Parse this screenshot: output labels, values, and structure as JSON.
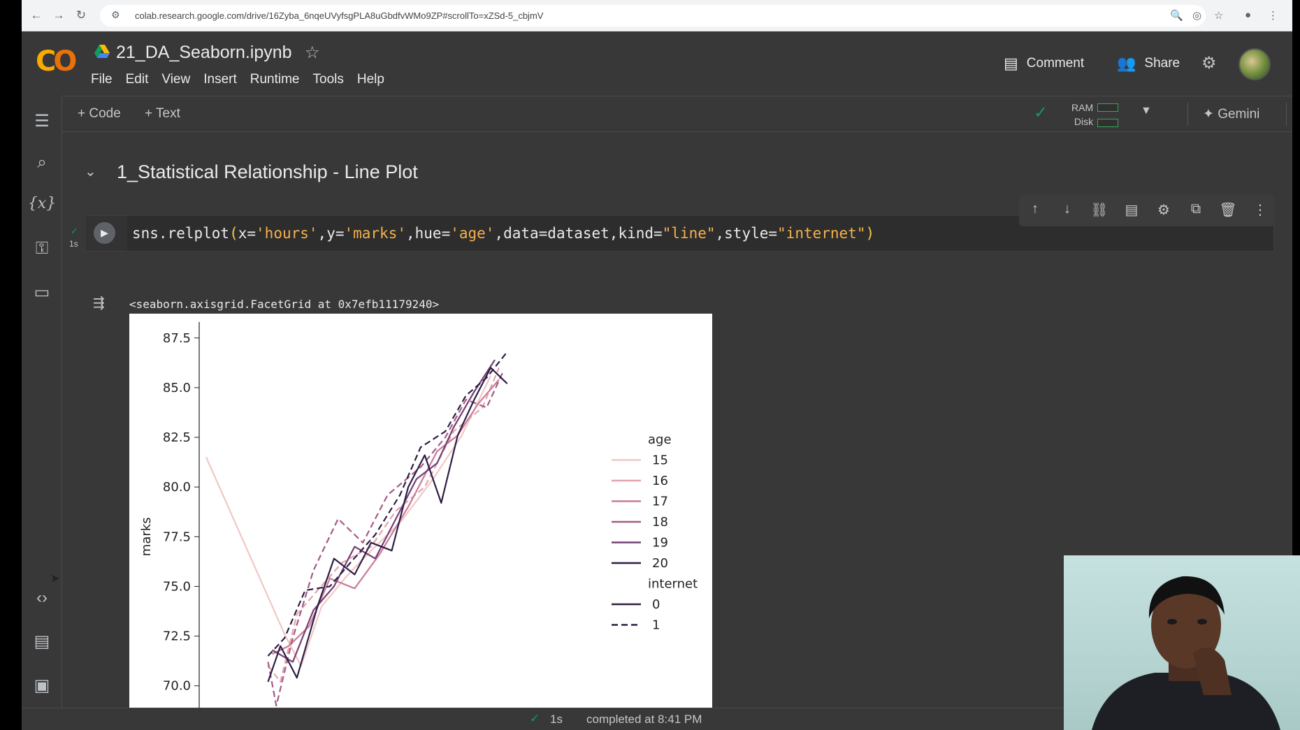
{
  "browser": {
    "url": "colab.research.google.com/drive/16Zyba_6nqeUVyfsgPLA8uGbdfvWMo9ZP#scrollTo=xZSd-5_cbjmV"
  },
  "header": {
    "title": "21_DA_Seaborn.ipynb",
    "menu": [
      "File",
      "Edit",
      "View",
      "Insert",
      "Runtime",
      "Tools",
      "Help"
    ],
    "comment_label": "Comment",
    "share_label": "Share"
  },
  "toolbar": {
    "add_code_label": "+ Code",
    "add_text_label": "+ Text",
    "ram_label": "RAM",
    "disk_label": "Disk",
    "gemini_label": "Gemini"
  },
  "notebook": {
    "section_title": "1_Statistical Relationship - Line Plot",
    "cell": {
      "exec_time": "1s",
      "code_prefix": "sns.relplot",
      "code_parts": [
        {
          "t": "(",
          "c": "paren"
        },
        {
          "t": "x=",
          "c": ""
        },
        {
          "t": "'hours'",
          "c": "str"
        },
        {
          "t": ",y=",
          "c": ""
        },
        {
          "t": "'marks'",
          "c": "str"
        },
        {
          "t": ",hue=",
          "c": ""
        },
        {
          "t": "'age'",
          "c": "str"
        },
        {
          "t": ",data=dataset,kind=",
          "c": ""
        },
        {
          "t": "\"line\"",
          "c": "str"
        },
        {
          "t": ",style=",
          "c": ""
        },
        {
          "t": "\"internet\"",
          "c": "str"
        },
        {
          "t": ")",
          "c": "paren"
        }
      ],
      "output_repr": "<seaborn.axisgrid.FacetGrid at 0x7efb11179240>"
    }
  },
  "status": {
    "time": "1s",
    "text": "completed at 8:41 PM"
  },
  "chart_data": {
    "type": "line",
    "title": "",
    "xlabel": "",
    "ylabel": "marks",
    "ylim": [
      68.9,
      88.3
    ],
    "y_ticks": [
      70.0,
      72.5,
      75.0,
      77.5,
      80.0,
      82.5,
      85.0,
      87.5
    ],
    "y_tick_labels": [
      "70.0",
      "72.5",
      "75.0",
      "77.5",
      "80.0",
      "82.5",
      "85.0",
      "87.5"
    ],
    "x_range": [
      0,
      1
    ],
    "legend": {
      "position": "right",
      "hue_title": "age",
      "style_title": "internet",
      "hue_entries": [
        {
          "label": "15",
          "color": "#f0c8c3"
        },
        {
          "label": "16",
          "color": "#e3a3ad"
        },
        {
          "label": "17",
          "color": "#cb7a98"
        },
        {
          "label": "18",
          "color": "#a55a86"
        },
        {
          "label": "19",
          "color": "#743f73"
        },
        {
          "label": "20",
          "color": "#2f1d45"
        }
      ],
      "style_entries": [
        {
          "label": "0",
          "dash": "solid"
        },
        {
          "label": "1",
          "dash": "dashed"
        }
      ]
    },
    "series": [
      {
        "hue": "15",
        "style": "0",
        "x": [
          0.0,
          0.19,
          0.23,
          0.28,
          0.34,
          0.4,
          0.47,
          0.55,
          0.62,
          0.69
        ],
        "y": [
          81.5,
          72.6,
          71.0,
          74.0,
          75.5,
          76.8,
          78.2,
          80.4,
          82.6,
          85.6
        ]
      },
      {
        "hue": "16",
        "style": "1",
        "x": [
          0.15,
          0.18,
          0.22,
          0.27,
          0.33,
          0.4,
          0.46,
          0.53,
          0.6,
          0.67,
          0.71
        ],
        "y": [
          71.0,
          70.2,
          73.6,
          74.8,
          76.2,
          77.0,
          78.8,
          80.0,
          82.8,
          84.0,
          86.0
        ]
      },
      {
        "hue": "17",
        "style": "0",
        "x": [
          0.16,
          0.2,
          0.25,
          0.3,
          0.36,
          0.42,
          0.49,
          0.56,
          0.61,
          0.66,
          0.71
        ],
        "y": [
          71.6,
          72.0,
          73.0,
          75.4,
          74.9,
          76.6,
          79.0,
          81.8,
          82.6,
          84.2,
          85.4
        ]
      },
      {
        "hue": "18",
        "style": "1",
        "x": [
          0.15,
          0.17,
          0.21,
          0.26,
          0.32,
          0.38,
          0.44,
          0.52,
          0.58,
          0.63,
          0.68,
          0.72
        ],
        "y": [
          71.2,
          69.0,
          72.4,
          75.8,
          78.4,
          77.2,
          79.6,
          81.0,
          82.5,
          84.4,
          84.0,
          85.8
        ]
      },
      {
        "hue": "19",
        "style": "0",
        "x": [
          0.16,
          0.21,
          0.26,
          0.31,
          0.36,
          0.41,
          0.45,
          0.51,
          0.56,
          0.6,
          0.65,
          0.7
        ],
        "y": [
          71.8,
          71.2,
          73.8,
          75.0,
          77.0,
          76.4,
          78.0,
          80.4,
          81.2,
          83.0,
          84.8,
          86.4
        ]
      },
      {
        "hue": "20",
        "style": "0",
        "x": [
          0.15,
          0.18,
          0.22,
          0.27,
          0.31,
          0.36,
          0.4,
          0.45,
          0.49,
          0.53,
          0.57,
          0.61,
          0.65,
          0.69,
          0.73
        ],
        "y": [
          70.2,
          72.0,
          70.4,
          74.0,
          76.4,
          75.6,
          77.2,
          76.8,
          80.0,
          81.6,
          79.2,
          82.6,
          84.4,
          86.0,
          85.2
        ]
      },
      {
        "hue": "20",
        "style": "1",
        "x": [
          0.15,
          0.19,
          0.24,
          0.3,
          0.35,
          0.41,
          0.47,
          0.52,
          0.58,
          0.63,
          0.68,
          0.73
        ],
        "y": [
          71.5,
          72.4,
          74.8,
          75.0,
          76.2,
          77.6,
          79.6,
          82.0,
          82.8,
          84.6,
          85.5,
          86.8
        ]
      }
    ]
  }
}
